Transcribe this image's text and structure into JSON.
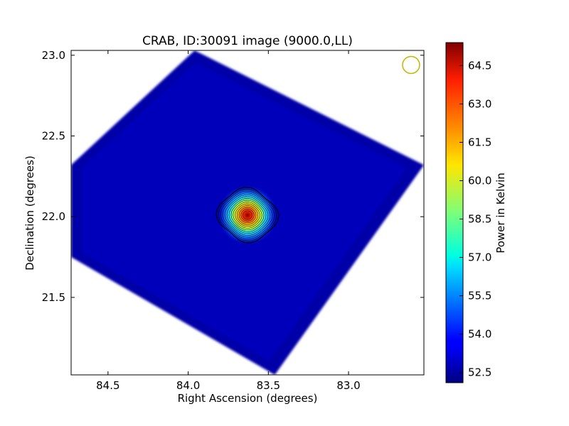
{
  "chart_data": {
    "type": "heatmap",
    "title": "CRAB, ID:30091 image (9000.0,LL)",
    "xlabel": "Right Ascension (degrees)",
    "ylabel": "Declination (degrees)",
    "colorbar_label": "Power in Kelvin",
    "x_reversed": true,
    "xlim": [
      84.73,
      82.53
    ],
    "ylim": [
      21.02,
      23.03
    ],
    "xticks": [
      {
        "value": 84.5,
        "label": "84.5"
      },
      {
        "value": 84.0,
        "label": "84.0"
      },
      {
        "value": 83.5,
        "label": "83.5"
      },
      {
        "value": 83.0,
        "label": "83.0"
      }
    ],
    "yticks": [
      {
        "value": 21.5,
        "label": "21.5"
      },
      {
        "value": 22.0,
        "label": "22.0"
      },
      {
        "value": 22.5,
        "label": "22.5"
      },
      {
        "value": 23.0,
        "label": "23.0"
      }
    ],
    "colorbar_range": [
      52.1,
      65.4
    ],
    "colorbar_ticks": [
      {
        "value": 52.5,
        "label": "52.5"
      },
      {
        "value": 54.0,
        "label": "54.0"
      },
      {
        "value": 55.5,
        "label": "55.5"
      },
      {
        "value": 57.0,
        "label": "57.0"
      },
      {
        "value": 58.5,
        "label": "58.5"
      },
      {
        "value": 60.0,
        "label": "60.0"
      },
      {
        "value": 61.5,
        "label": "61.5"
      },
      {
        "value": 63.0,
        "label": "63.0"
      },
      {
        "value": 64.5,
        "label": "64.5"
      }
    ],
    "colormap": "jet",
    "background_level": 52.6,
    "map_outline_corners": [
      {
        "ra": 83.96,
        "dec": 23.03
      },
      {
        "ra": 82.53,
        "dec": 22.32
      },
      {
        "ra": 83.46,
        "dec": 21.02
      },
      {
        "ra": 84.73,
        "dec": 21.75
      },
      {
        "ra": 84.73,
        "dec": 22.32
      }
    ],
    "source": {
      "ra": 83.63,
      "dec": 22.01,
      "peak": 65.0
    },
    "contour_count": 14,
    "contour_color": "#000000",
    "beam_marker": {
      "ra": 82.61,
      "dec": 22.94,
      "color": "#c8b400"
    }
  }
}
